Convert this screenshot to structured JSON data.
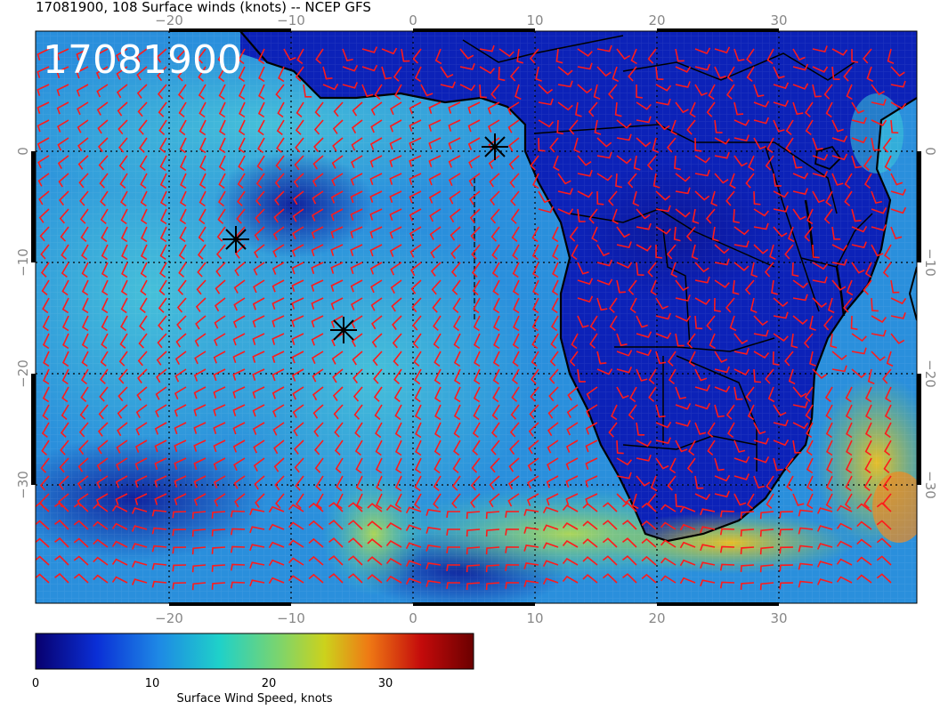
{
  "header": {
    "title": "17081900, 108 Surface winds (knots) -- NCEP GFS"
  },
  "map": {
    "stamp": "17081900",
    "lon_ticks": [
      "−20",
      "−10",
      "0",
      "10",
      "20",
      "30"
    ],
    "lat_ticks": [
      "0",
      "−10",
      "−20",
      "−30"
    ],
    "colors": {
      "wind_barb": "#ff1a1a",
      "coastline": "#000000",
      "stamp_text": "#ffffff"
    }
  },
  "colorbar": {
    "tick_labels": [
      "0",
      "10",
      "20",
      "30"
    ],
    "label": "Surface Wind Speed, knots",
    "colormap_stops": [
      "#08006e",
      "#0a2fd6",
      "#1e88e5",
      "#1fd1c9",
      "#ccd21c",
      "#ef7a14",
      "#c40b0b",
      "#6b0000"
    ]
  }
}
